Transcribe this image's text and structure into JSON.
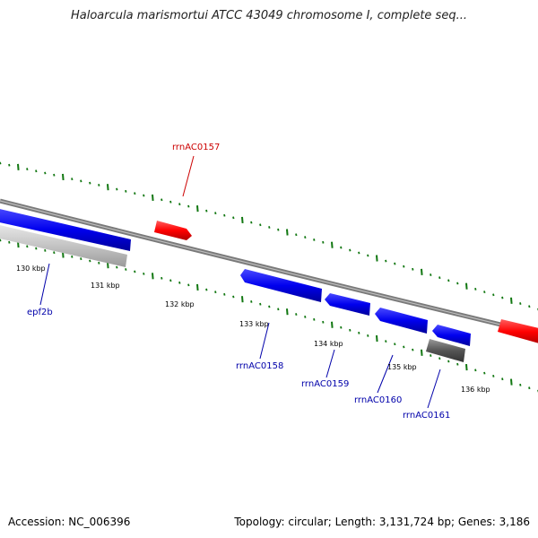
{
  "title": "Haloarcula marismortui ATCC 43049 chromosome I, complete seq...",
  "footer": {
    "accession": "Accession: NC_006396",
    "summary": "Topology: circular; Length: 3,131,724 bp; Genes: 3,186"
  },
  "colors": {
    "gene_forward": "#0000ee",
    "gene_reverse": "#ff0000",
    "gene_other": "#555555",
    "pseudo": "#bbbbbb",
    "backbone": "#808080",
    "ticks": "#117711",
    "label_blue": "#0000aa",
    "label_red": "#cc0000"
  },
  "ticks": [
    "130 kbp",
    "131 kbp",
    "132 kbp",
    "133 kbp",
    "134 kbp",
    "135 kbp",
    "136 kbp"
  ],
  "gene_labels": [
    {
      "text": "rrnAC0157",
      "color": "red"
    },
    {
      "text": "epf2b",
      "color": "blue"
    },
    {
      "text": "rrnAC0158",
      "color": "blue"
    },
    {
      "text": "rrnAC0159",
      "color": "blue"
    },
    {
      "text": "rrnAC0160",
      "color": "blue"
    },
    {
      "text": "rrnAC0161",
      "color": "blue"
    }
  ]
}
